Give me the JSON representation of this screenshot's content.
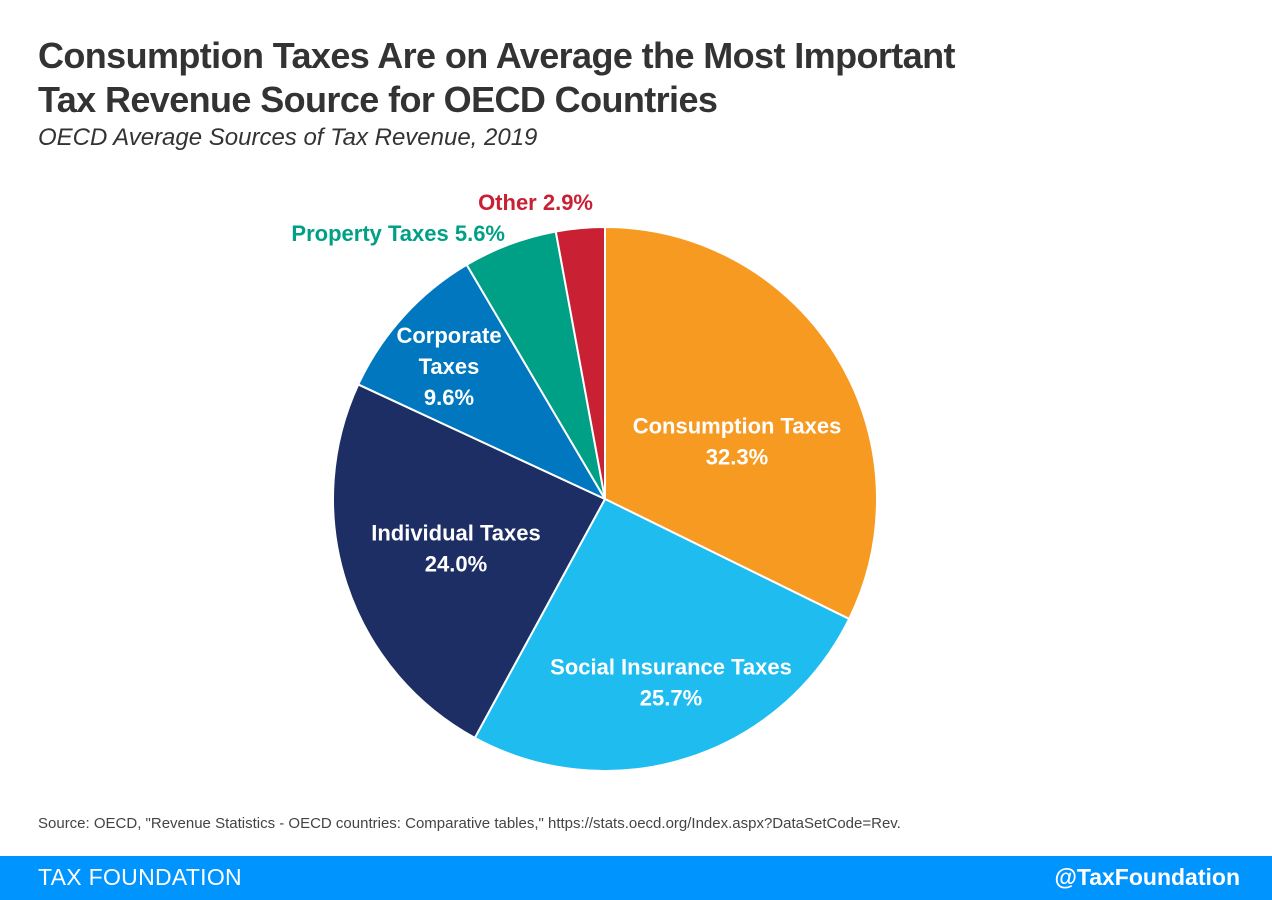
{
  "header": {
    "title_line1": "Consumption Taxes Are on Average the Most Important",
    "title_line2": "Tax Revenue Source for OECD Countries",
    "subtitle": "OECD Average Sources of Tax Revenue, 2019"
  },
  "chart_data": {
    "type": "pie",
    "title": "Consumption Taxes Are on Average the Most Important Tax Revenue Source for OECD Countries",
    "subtitle": "OECD Average Sources of Tax Revenue, 2019",
    "start": "12 o'clock, clockwise",
    "slices": [
      {
        "name": "Consumption Taxes",
        "value": 32.3,
        "label": "32.3%",
        "color": "#f79a21",
        "label_position": "inside"
      },
      {
        "name": "Social Insurance Taxes",
        "value": 25.7,
        "label": "25.7%",
        "color": "#1ebcef",
        "label_position": "inside"
      },
      {
        "name": "Individual Taxes",
        "value": 24.0,
        "label": "24.0%",
        "color": "#1c2e64",
        "label_position": "inside"
      },
      {
        "name": "Corporate Taxes",
        "value": 9.6,
        "label": "9.6%",
        "color": "#0077be",
        "label_position": "inside"
      },
      {
        "name": "Property Taxes",
        "value": 5.6,
        "label": "5.6%",
        "color": "#00a086",
        "label_position": "outside"
      },
      {
        "name": "Other",
        "value": 2.9,
        "label": "2.9%",
        "color": "#c92033",
        "label_position": "outside"
      }
    ],
    "inside_label_lines": [
      [
        "Consumption Taxes",
        "32.3%"
      ],
      [
        "Social Insurance Taxes",
        "25.7%"
      ],
      [
        "Individual Taxes",
        "24.0%"
      ],
      [
        "Corporate",
        "Taxes",
        "9.6%"
      ],
      [],
      []
    ],
    "outside_labels": [
      null,
      null,
      null,
      null,
      "Property Taxes 5.6%",
      "Other 2.9%"
    ]
  },
  "source": "Source: OECD, \"Revenue Statistics - OECD countries: Comparative tables,\" https://stats.oecd.org/Index.aspx?DataSetCode=Rev.",
  "footer": {
    "brand": "TAX FOUNDATION",
    "handle": "@TaxFoundation"
  }
}
